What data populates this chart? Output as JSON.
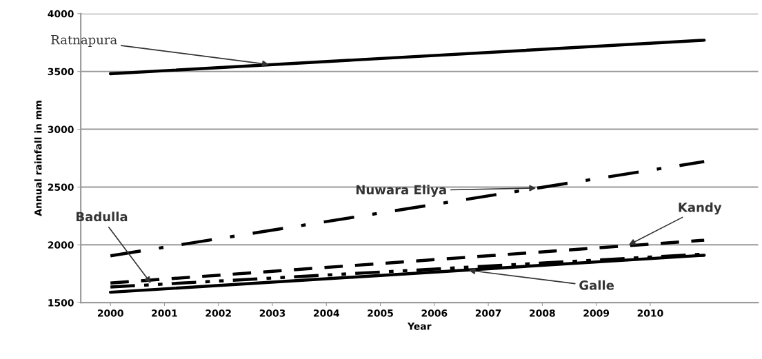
{
  "chart_data": {
    "type": "line",
    "xlabel": "Year",
    "ylabel": "Annual rainfall in mm",
    "xlim": [
      1999.45,
      2012.0
    ],
    "xticks": [
      2000,
      2001,
      2002,
      2003,
      2004,
      2005,
      2006,
      2007,
      2008,
      2009,
      2010
    ],
    "ylim": [
      1500,
      4000
    ],
    "yticks": [
      1500,
      2000,
      2500,
      3000,
      3500,
      4000
    ],
    "grid": "y",
    "legend": false,
    "marker": "none",
    "x": [
      2000,
      2011
    ],
    "series": [
      {
        "name": "Ratnapura",
        "color": "#000000",
        "line_style": "solid",
        "values": [
          3480,
          3770
        ]
      },
      {
        "name": "Nuwara Eliya",
        "color": "#000000",
        "line_style": "dashdot",
        "values": [
          1905,
          2720
        ]
      },
      {
        "name": "Kandy",
        "color": "#000000",
        "line_style": "dashed",
        "values": [
          1670,
          2040
        ]
      },
      {
        "name": "Badulla",
        "color": "#000000",
        "line_style": "dashdotdot",
        "values": [
          1635,
          1920
        ]
      },
      {
        "name": "Galle",
        "color": "#000000",
        "line_style": "solid",
        "values": [
          1590,
          1910
        ]
      }
    ]
  }
}
